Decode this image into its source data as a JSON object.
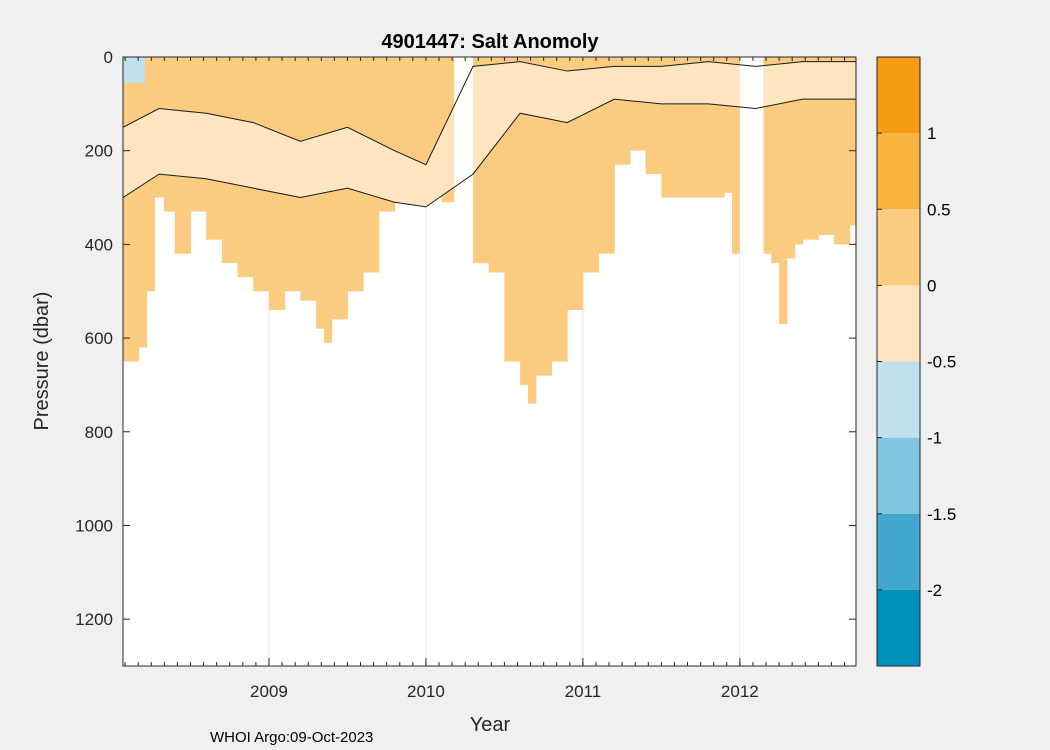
{
  "window": {
    "background": "#f0f0f0"
  },
  "chart_data": {
    "type": "contourf",
    "title": "4901447: Salt Anomoly",
    "xlabel": "Year",
    "ylabel": "Pressure (dbar)",
    "credit": "WHOI Argo:09-Oct-2023",
    "xlim": [
      2008.07,
      2012.74
    ],
    "ylim": [
      1300,
      0
    ],
    "y_reversed": true,
    "xticks": [
      2009,
      2010,
      2011,
      2012
    ],
    "xtick_labels": [
      "2009",
      "2010",
      "2011",
      "2012"
    ],
    "yticks": [
      0,
      200,
      400,
      600,
      800,
      1000,
      1200
    ],
    "ytick_labels": [
      "0",
      "200",
      "400",
      "600",
      "800",
      "1000",
      "1200"
    ],
    "colorbar": {
      "levels": [
        -2.5,
        -2,
        -1.5,
        -1,
        -0.5,
        0,
        0.5,
        1,
        1.5
      ],
      "tick_values": [
        -2,
        -1.5,
        -1,
        -0.5,
        0,
        0.5,
        1
      ],
      "tick_labels": [
        "-2",
        "-1.5",
        "-1",
        "-0.5",
        "0",
        "0.5",
        "1"
      ],
      "colors": [
        "#0090bc",
        "#40a8cf",
        "#80c4df",
        "#bfe0ec",
        "#fce5bf",
        "#fbcb80",
        "#f9b340",
        "#f89b14"
      ]
    },
    "profile_depth": {
      "time": [
        2008.07,
        2008.17,
        2008.22,
        2008.27,
        2008.33,
        2008.4,
        2008.5,
        2008.6,
        2008.7,
        2008.8,
        2008.9,
        2009.0,
        2009.1,
        2009.2,
        2009.3,
        2009.35,
        2009.4,
        2009.5,
        2009.6,
        2009.7,
        2009.8,
        2009.9,
        2010.0,
        2010.1,
        2010.18,
        2010.22,
        2010.3,
        2010.4,
        2010.5,
        2010.6,
        2010.65,
        2010.7,
        2010.8,
        2010.9,
        2011.0,
        2011.1,
        2011.2,
        2011.3,
        2011.4,
        2011.5,
        2011.6,
        2011.7,
        2011.8,
        2011.9,
        2011.95,
        2012.0,
        2012.05,
        2012.15,
        2012.2,
        2012.25,
        2012.3,
        2012.35,
        2012.4,
        2012.5,
        2012.6,
        2012.7,
        2012.74
      ],
      "max_pressure": [
        650,
        620,
        500,
        300,
        330,
        420,
        330,
        390,
        440,
        470,
        500,
        540,
        500,
        520,
        580,
        610,
        560,
        500,
        460,
        330,
        300,
        310,
        270,
        310,
        0,
        0,
        440,
        460,
        650,
        700,
        740,
        680,
        650,
        540,
        460,
        420,
        230,
        200,
        250,
        300,
        300,
        300,
        300,
        290,
        420,
        0,
        0,
        420,
        440,
        570,
        430,
        400,
        390,
        380,
        400,
        360,
        380
      ]
    },
    "surface_band": {
      "time": [
        2008.07,
        2008.3,
        2008.6,
        2008.9,
        2009.2,
        2009.5,
        2009.8,
        2010.0,
        2010.3,
        2010.6,
        2010.9,
        2011.2,
        2011.5,
        2011.8,
        2012.1,
        2012.4,
        2012.74
      ],
      "upper_pressure": [
        150,
        110,
        120,
        140,
        180,
        150,
        200,
        230,
        20,
        10,
        30,
        20,
        20,
        10,
        20,
        10,
        10
      ],
      "lower_pressure": [
        300,
        250,
        260,
        280,
        300,
        280,
        310,
        320,
        250,
        120,
        140,
        90,
        100,
        100,
        110,
        90,
        90
      ]
    },
    "fresh_patch": {
      "time_range": [
        2008.07,
        2008.21
      ],
      "max_pressure": 55,
      "value": "-1 to -0.5"
    },
    "grid": "x-only"
  }
}
